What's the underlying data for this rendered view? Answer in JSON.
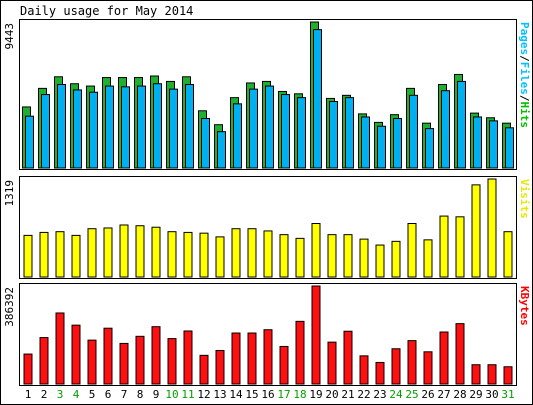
{
  "chart_data": {
    "type": "bar",
    "title": "Daily usage for May 2014",
    "categories": [
      "1",
      "2",
      "3",
      "4",
      "5",
      "6",
      "7",
      "8",
      "9",
      "10",
      "11",
      "12",
      "13",
      "14",
      "15",
      "16",
      "17",
      "18",
      "19",
      "20",
      "21",
      "22",
      "23",
      "24",
      "25",
      "26",
      "27",
      "28",
      "29",
      "30",
      "31"
    ],
    "weekend_days": [
      "3",
      "4",
      "10",
      "11",
      "17",
      "18",
      "24",
      "25",
      "31"
    ],
    "panels": [
      {
        "name": "hits-files-pages",
        "max_label": "9443",
        "ymax": 9443,
        "legend": [
          "Pages",
          "/",
          "Files",
          "/",
          "Hits"
        ],
        "legend_colors": [
          "#00c0ff",
          "#000000",
          "#00c0ff",
          "#000000",
          "#00c000"
        ],
        "series": [
          {
            "name": "Hits",
            "color": "#20b030",
            "values": [
              3950,
              5150,
              5900,
              5450,
              5300,
              5850,
              5850,
              5850,
              5950,
              5600,
              5900,
              3700,
              2800,
              4550,
              5500,
              5600,
              4950,
              4800,
              9443,
              4500,
              4700,
              3500,
              2950,
              3450,
              5150,
              2900,
              5400,
              6050,
              3550,
              3250,
              2900
            ]
          },
          {
            "name": "Files",
            "color": "#00b0f0",
            "values": [
              3350,
              4750,
              5400,
              5050,
              4900,
              5300,
              5250,
              5300,
              5450,
              5100,
              5400,
              3200,
              2350,
              4150,
              5100,
              5300,
              4750,
              4550,
              8950,
              4300,
              4550,
              3300,
              2700,
              3200,
              4700,
              2550,
              5000,
              5600,
              3300,
              3050,
              2600
            ]
          }
        ]
      },
      {
        "name": "visits",
        "max_label": "1319",
        "ymax": 1319,
        "legend": [
          "Visits"
        ],
        "legend_colors": [
          "#e8e800"
        ],
        "series": [
          {
            "name": "Visits",
            "color": "#ffff00",
            "values": [
              560,
              600,
              610,
              560,
              650,
              660,
              700,
              690,
              670,
              610,
              600,
              590,
              540,
              650,
              650,
              620,
              570,
              520,
              720,
              570,
              570,
              510,
              430,
              480,
              720,
              500,
              820,
              810,
              1240,
              1319,
              610
            ]
          }
        ]
      },
      {
        "name": "kbytes",
        "max_label": "386392",
        "ymax": 386392,
        "legend": [
          "KBytes"
        ],
        "legend_colors": [
          "#ff0000"
        ],
        "series": [
          {
            "name": "KBytes",
            "color": "#ff1010",
            "values": [
              118000,
              183000,
              280000,
              232000,
              173000,
              220000,
              160000,
              188000,
              226000,
              179000,
              209000,
              113000,
              132000,
              201000,
              201000,
              214000,
              148000,
              247000,
              386392,
              165000,
              208000,
              111000,
              85000,
              139000,
              171000,
              127000,
              205000,
              238000,
              76000,
              76000,
              68000
            ]
          }
        ]
      }
    ]
  }
}
